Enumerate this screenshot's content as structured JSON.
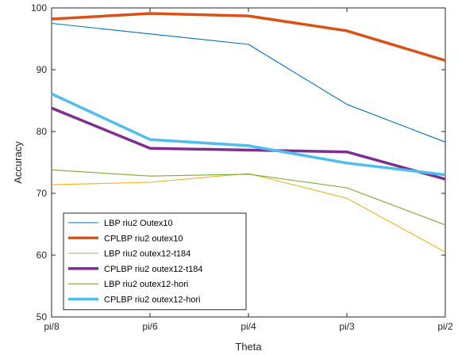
{
  "chart_data": {
    "type": "line",
    "title": "",
    "xlabel": "Theta",
    "ylabel": "Accuracy",
    "categories": [
      "pi/8",
      "pi/6",
      "pi/4",
      "pi/3",
      "pi/2"
    ],
    "ylim": [
      50,
      100
    ],
    "yticks": [
      50,
      60,
      70,
      80,
      90,
      100
    ],
    "grid": false,
    "legend_position": "bottom-left",
    "series": [
      {
        "name": "LBP riu2 Outex10",
        "color": "#0072BD",
        "width": "thin",
        "values": [
          97.5,
          95.8,
          94.1,
          84.4,
          78.3
        ]
      },
      {
        "name": "CPLBP  riu2 outex10",
        "color": "#D95319",
        "width": "thick",
        "values": [
          98.2,
          99.1,
          98.7,
          96.3,
          91.5
        ]
      },
      {
        "name": "LBP  riu2 outex12-t184",
        "color": "#EDB120",
        "width": "thin",
        "values": [
          71.4,
          71.8,
          73.2,
          69.2,
          60.5
        ]
      },
      {
        "name": "CPLBP  riu2 outex12-t184",
        "color": "#7E2F8E",
        "width": "thick",
        "values": [
          83.8,
          77.3,
          77.0,
          76.7,
          72.3
        ]
      },
      {
        "name": "LBP  riu2 outex12-hori",
        "color": "#77AC30",
        "width": "thin",
        "values": [
          73.8,
          72.8,
          73.1,
          70.9,
          64.9
        ]
      },
      {
        "name": "CPLBP  riu2 outex12-hori",
        "color": "#4DBEEE",
        "width": "thick",
        "values": [
          86.1,
          78.7,
          77.7,
          74.9,
          73.0
        ]
      }
    ]
  }
}
